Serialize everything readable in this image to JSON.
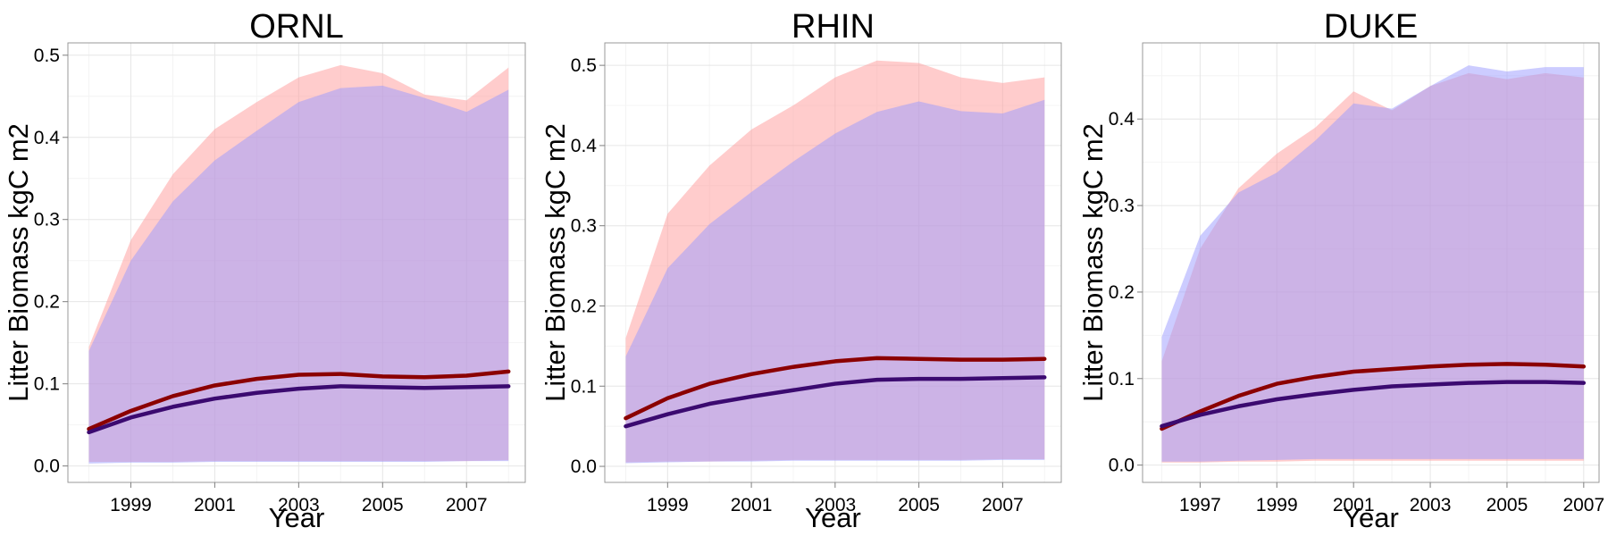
{
  "chart_data": [
    {
      "type": "area",
      "title": "ORNL",
      "xlabel": "Year",
      "ylabel": "Litter Biomass kgC m2",
      "xlim": [
        1997.5,
        2008.4
      ],
      "ylim": [
        -0.02,
        0.515
      ],
      "x_ticks": [
        "1999",
        "2001",
        "2003",
        "2005",
        "2007"
      ],
      "x_tick_values": [
        1999,
        2001,
        2003,
        2005,
        2007
      ],
      "y_ticks": [
        "0.0",
        "0.1",
        "0.2",
        "0.3",
        "0.4",
        "0.5"
      ],
      "y_tick_values": [
        0,
        0.1,
        0.2,
        0.3,
        0.4,
        0.5
      ],
      "grid": true,
      "years": [
        1998,
        1999,
        2000,
        2001,
        2002,
        2003,
        2004,
        2005,
        2006,
        2007,
        2008
      ],
      "series": [
        {
          "color": "#8B0000",
          "band_color": "#FF9999",
          "mean": [
            0.045,
            0.067,
            0.085,
            0.098,
            0.106,
            0.111,
            0.112,
            0.109,
            0.108,
            0.11,
            0.115
          ],
          "lower": [
            0.005,
            0.005,
            0.005,
            0.006,
            0.006,
            0.006,
            0.006,
            0.006,
            0.006,
            0.006,
            0.007
          ],
          "upper": [
            0.145,
            0.275,
            0.355,
            0.41,
            0.443,
            0.473,
            0.488,
            0.478,
            0.452,
            0.445,
            0.485
          ]
        },
        {
          "color": "#3B0A70",
          "band_color": "#9999FF",
          "mean": [
            0.041,
            0.059,
            0.072,
            0.082,
            0.089,
            0.094,
            0.097,
            0.096,
            0.095,
            0.096,
            0.097
          ],
          "lower": [
            0.003,
            0.004,
            0.004,
            0.005,
            0.005,
            0.005,
            0.005,
            0.005,
            0.005,
            0.006,
            0.006
          ],
          "upper": [
            0.14,
            0.25,
            0.322,
            0.372,
            0.408,
            0.443,
            0.46,
            0.463,
            0.448,
            0.431,
            0.458
          ]
        }
      ]
    },
    {
      "type": "area",
      "title": "RHIN",
      "xlabel": "Year",
      "ylabel": "Litter Biomass kgC m2",
      "xlim": [
        1997.5,
        2008.4
      ],
      "ylim": [
        -0.02,
        0.528
      ],
      "x_ticks": [
        "1999",
        "2001",
        "2003",
        "2005",
        "2007"
      ],
      "x_tick_values": [
        1999,
        2001,
        2003,
        2005,
        2007
      ],
      "y_ticks": [
        "0.0",
        "0.1",
        "0.2",
        "0.3",
        "0.4",
        "0.5"
      ],
      "y_tick_values": [
        0,
        0.1,
        0.2,
        0.3,
        0.4,
        0.5
      ],
      "grid": true,
      "years": [
        1998,
        1999,
        2000,
        2001,
        2002,
        2003,
        2004,
        2005,
        2006,
        2007,
        2008
      ],
      "series": [
        {
          "color": "#8B0000",
          "band_color": "#FF9999",
          "mean": [
            0.06,
            0.085,
            0.103,
            0.115,
            0.124,
            0.131,
            0.135,
            0.134,
            0.133,
            0.133,
            0.134
          ],
          "lower": [
            0.005,
            0.006,
            0.006,
            0.007,
            0.008,
            0.008,
            0.008,
            0.008,
            0.008,
            0.009,
            0.009
          ],
          "upper": [
            0.16,
            0.315,
            0.375,
            0.42,
            0.45,
            0.485,
            0.506,
            0.503,
            0.485,
            0.478,
            0.485
          ]
        },
        {
          "color": "#3B0A70",
          "band_color": "#9999FF",
          "mean": [
            0.05,
            0.065,
            0.078,
            0.087,
            0.095,
            0.103,
            0.108,
            0.109,
            0.109,
            0.11,
            0.111
          ],
          "lower": [
            0.004,
            0.005,
            0.006,
            0.006,
            0.007,
            0.007,
            0.007,
            0.007,
            0.007,
            0.008,
            0.008
          ],
          "upper": [
            0.137,
            0.247,
            0.302,
            0.342,
            0.38,
            0.415,
            0.442,
            0.455,
            0.443,
            0.44,
            0.457
          ]
        }
      ]
    },
    {
      "type": "area",
      "title": "DUKE",
      "xlabel": "Year",
      "ylabel": "Litter Biomass kgC m2",
      "xlim": [
        1995.5,
        2007.4
      ],
      "ylim": [
        -0.02,
        0.488
      ],
      "x_ticks": [
        "1997",
        "1999",
        "2001",
        "2003",
        "2005",
        "2007"
      ],
      "x_tick_values": [
        1997,
        1999,
        2001,
        2003,
        2005,
        2007
      ],
      "y_ticks": [
        "0.0",
        "0.1",
        "0.2",
        "0.3",
        "0.4"
      ],
      "y_tick_values": [
        0,
        0.1,
        0.2,
        0.3,
        0.4
      ],
      "grid": true,
      "years": [
        1996,
        1997,
        1998,
        1999,
        2000,
        2001,
        2002,
        2003,
        2004,
        2005,
        2006,
        2007
      ],
      "series": [
        {
          "color": "#8B0000",
          "band_color": "#FF9999",
          "mean": [
            0.042,
            0.062,
            0.08,
            0.094,
            0.102,
            0.108,
            0.111,
            0.114,
            0.116,
            0.117,
            0.116,
            0.114
          ],
          "lower": [
            0.003,
            0.003,
            0.004,
            0.004,
            0.005,
            0.005,
            0.005,
            0.005,
            0.005,
            0.005,
            0.005,
            0.005
          ],
          "upper": [
            0.12,
            0.25,
            0.32,
            0.36,
            0.39,
            0.432,
            0.41,
            0.438,
            0.453,
            0.446,
            0.453,
            0.448
          ]
        },
        {
          "color": "#3B0A70",
          "band_color": "#9999FF",
          "mean": [
            0.045,
            0.058,
            0.068,
            0.076,
            0.082,
            0.087,
            0.091,
            0.093,
            0.095,
            0.096,
            0.096,
            0.095
          ],
          "lower": [
            0.004,
            0.004,
            0.005,
            0.006,
            0.007,
            0.007,
            0.007,
            0.007,
            0.007,
            0.007,
            0.007,
            0.007
          ],
          "upper": [
            0.148,
            0.265,
            0.315,
            0.338,
            0.375,
            0.418,
            0.412,
            0.438,
            0.462,
            0.455,
            0.46,
            0.46
          ]
        }
      ]
    }
  ]
}
